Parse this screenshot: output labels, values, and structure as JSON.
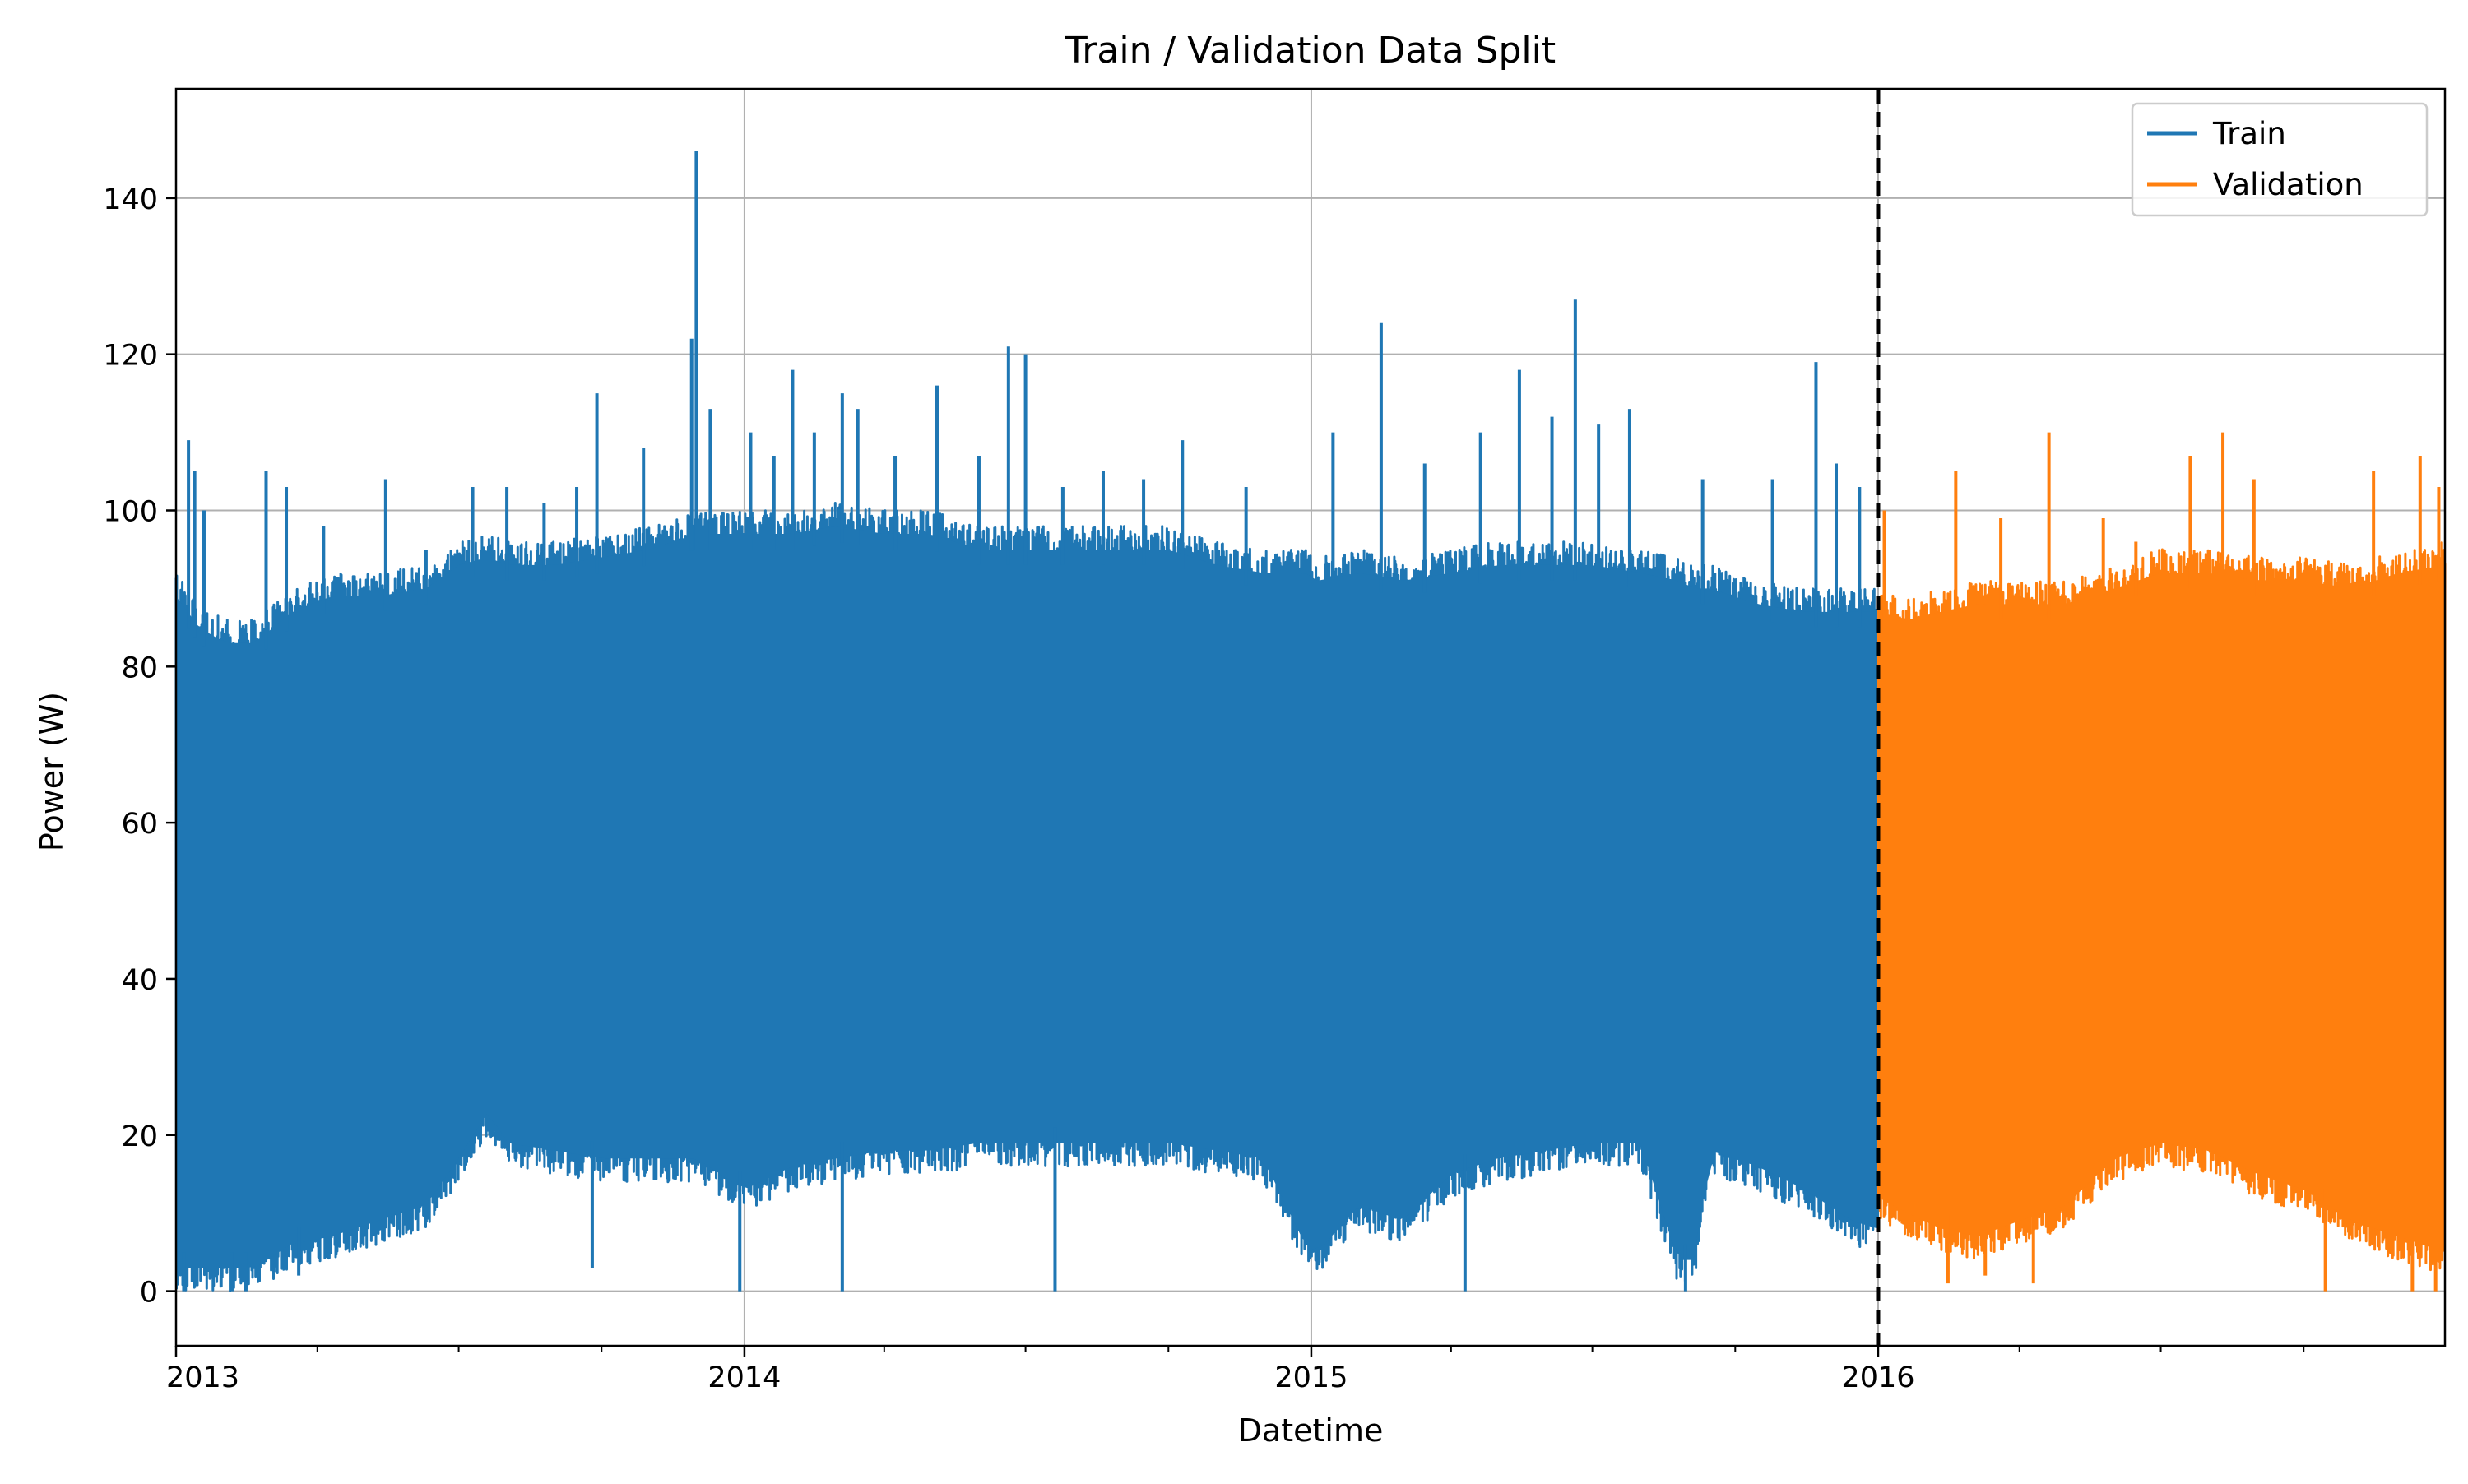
{
  "chart_data": {
    "type": "line",
    "title": "Train / Validation Data Split",
    "xlabel": "Datetime",
    "ylabel": "Power (W)",
    "grid": true,
    "legend_position": "top-right",
    "xlim": [
      "2012-12-31",
      "2016-12-31"
    ],
    "ylim": [
      -7,
      154
    ],
    "x_ticks": [
      {
        "label": "2013",
        "date": "2012-12-31"
      },
      {
        "label": "2014",
        "date": "2014-01-01"
      },
      {
        "label": "2015",
        "date": "2015-01-01"
      },
      {
        "label": "2016",
        "date": "2016-01-01"
      }
    ],
    "y_ticks": [
      {
        "label": "0",
        "value": 0
      },
      {
        "label": "20",
        "value": 20
      },
      {
        "label": "40",
        "value": 40
      },
      {
        "label": "60",
        "value": 60
      },
      {
        "label": "80",
        "value": 80
      },
      {
        "label": "100",
        "value": 100
      },
      {
        "label": "120",
        "value": 120
      },
      {
        "label": "140",
        "value": 140
      }
    ],
    "split_date": "2016-01-01",
    "series": [
      {
        "name": "Train",
        "color": "#1f77b4",
        "start": "2012-12-31",
        "end": "2016-01-01",
        "lower_envelope": [
          [
            "2012-12-31",
            0
          ],
          [
            "2013-01-15",
            0
          ],
          [
            "2013-02-01",
            0
          ],
          [
            "2013-02-20",
            0
          ],
          [
            "2013-03-15",
            3
          ],
          [
            "2013-04-10",
            4
          ],
          [
            "2013-05-10",
            6
          ],
          [
            "2013-06-10",
            8
          ],
          [
            "2013-07-01",
            14
          ],
          [
            "2013-07-20",
            20
          ],
          [
            "2013-08-01",
            16
          ],
          [
            "2013-09-01",
            15
          ],
          [
            "2013-10-01",
            14
          ],
          [
            "2013-11-01",
            14
          ],
          [
            "2013-12-01",
            14
          ],
          [
            "2014-01-01",
            10
          ],
          [
            "2014-02-01",
            13
          ],
          [
            "2014-03-01",
            14
          ],
          [
            "2014-04-01",
            15
          ],
          [
            "2014-05-01",
            15
          ],
          [
            "2014-06-01",
            16
          ],
          [
            "2014-07-01",
            16
          ],
          [
            "2014-08-01",
            16
          ],
          [
            "2014-09-01",
            16
          ],
          [
            "2014-10-01",
            16
          ],
          [
            "2014-11-01",
            15
          ],
          [
            "2014-12-01",
            14
          ],
          [
            "2014-12-28",
            3
          ],
          [
            "2015-01-05",
            2
          ],
          [
            "2015-02-01",
            8
          ],
          [
            "2015-03-01",
            6
          ],
          [
            "2015-04-01",
            12
          ],
          [
            "2015-05-01",
            14
          ],
          [
            "2015-06-01",
            15
          ],
          [
            "2015-07-01",
            16
          ],
          [
            "2015-08-01",
            16
          ],
          [
            "2015-08-25",
            1
          ],
          [
            "2015-09-05",
            1
          ],
          [
            "2015-09-15",
            15
          ],
          [
            "2015-10-15",
            13
          ],
          [
            "2015-11-15",
            10
          ],
          [
            "2015-12-15",
            6
          ],
          [
            "2016-01-01",
            5
          ]
        ],
        "upper_envelope": [
          [
            "2012-12-31",
            92
          ],
          [
            "2013-01-15",
            88
          ],
          [
            "2013-02-01",
            86
          ],
          [
            "2013-02-20",
            86
          ],
          [
            "2013-03-15",
            90
          ],
          [
            "2013-04-10",
            92
          ],
          [
            "2013-05-10",
            92
          ],
          [
            "2013-06-10",
            93
          ],
          [
            "2013-07-01",
            96
          ],
          [
            "2013-07-20",
            97
          ],
          [
            "2013-08-01",
            96
          ],
          [
            "2013-09-01",
            96
          ],
          [
            "2013-10-01",
            97
          ],
          [
            "2013-11-01",
            98
          ],
          [
            "2013-12-01",
            100
          ],
          [
            "2014-01-01",
            100
          ],
          [
            "2014-02-01",
            100
          ],
          [
            "2014-03-01",
            101
          ],
          [
            "2014-04-01",
            100
          ],
          [
            "2014-05-01",
            100
          ],
          [
            "2014-06-01",
            98
          ],
          [
            "2014-07-01",
            98
          ],
          [
            "2014-08-01",
            98
          ],
          [
            "2014-09-01",
            98
          ],
          [
            "2014-10-01",
            98
          ],
          [
            "2014-11-01",
            96
          ],
          [
            "2014-12-01",
            95
          ],
          [
            "2014-12-28",
            95
          ],
          [
            "2015-01-05",
            94
          ],
          [
            "2015-02-01",
            95
          ],
          [
            "2015-03-01",
            94
          ],
          [
            "2015-04-01",
            95
          ],
          [
            "2015-05-01",
            96
          ],
          [
            "2015-06-01",
            96
          ],
          [
            "2015-07-01",
            96
          ],
          [
            "2015-08-01",
            95
          ],
          [
            "2015-08-25",
            94
          ],
          [
            "2015-09-05",
            93
          ],
          [
            "2015-09-15",
            93
          ],
          [
            "2015-10-15",
            91
          ],
          [
            "2015-11-15",
            90
          ],
          [
            "2015-12-15",
            90
          ],
          [
            "2016-01-01",
            90
          ]
        ],
        "dips": [
          {
            "date": "2013-01-05",
            "value": 0
          },
          {
            "date": "2013-02-05",
            "value": 0
          },
          {
            "date": "2013-02-14",
            "value": 0
          },
          {
            "date": "2013-03-20",
            "value": 2
          },
          {
            "date": "2013-09-25",
            "value": 3
          },
          {
            "date": "2013-12-29",
            "value": 0
          },
          {
            "date": "2014-03-05",
            "value": 0
          },
          {
            "date": "2014-07-20",
            "value": 0
          },
          {
            "date": "2015-04-10",
            "value": 0
          },
          {
            "date": "2015-08-30",
            "value": 0
          }
        ],
        "spikes": [
          {
            "date": "2013-01-08",
            "value": 109
          },
          {
            "date": "2013-01-12",
            "value": 105
          },
          {
            "date": "2013-01-18",
            "value": 100
          },
          {
            "date": "2013-02-27",
            "value": 105
          },
          {
            "date": "2013-03-12",
            "value": 103
          },
          {
            "date": "2013-04-05",
            "value": 98
          },
          {
            "date": "2013-05-15",
            "value": 104
          },
          {
            "date": "2013-06-10",
            "value": 95
          },
          {
            "date": "2013-07-10",
            "value": 103
          },
          {
            "date": "2013-08-01",
            "value": 103
          },
          {
            "date": "2013-08-25",
            "value": 101
          },
          {
            "date": "2013-09-15",
            "value": 103
          },
          {
            "date": "2013-09-28",
            "value": 115
          },
          {
            "date": "2013-10-28",
            "value": 108
          },
          {
            "date": "2013-11-28",
            "value": 122
          },
          {
            "date": "2013-12-01",
            "value": 146
          },
          {
            "date": "2013-12-10",
            "value": 113
          },
          {
            "date": "2014-01-05",
            "value": 110
          },
          {
            "date": "2014-01-20",
            "value": 107
          },
          {
            "date": "2014-02-01",
            "value": 118
          },
          {
            "date": "2014-02-15",
            "value": 110
          },
          {
            "date": "2014-03-05",
            "value": 115
          },
          {
            "date": "2014-03-15",
            "value": 113
          },
          {
            "date": "2014-04-08",
            "value": 107
          },
          {
            "date": "2014-05-05",
            "value": 116
          },
          {
            "date": "2014-06-01",
            "value": 107
          },
          {
            "date": "2014-06-20",
            "value": 121
          },
          {
            "date": "2014-07-01",
            "value": 120
          },
          {
            "date": "2014-07-25",
            "value": 103
          },
          {
            "date": "2014-08-20",
            "value": 105
          },
          {
            "date": "2014-09-15",
            "value": 104
          },
          {
            "date": "2014-10-10",
            "value": 109
          },
          {
            "date": "2014-11-20",
            "value": 103
          },
          {
            "date": "2015-01-15",
            "value": 110
          },
          {
            "date": "2015-02-15",
            "value": 124
          },
          {
            "date": "2015-03-15",
            "value": 106
          },
          {
            "date": "2015-04-20",
            "value": 110
          },
          {
            "date": "2015-05-15",
            "value": 118
          },
          {
            "date": "2015-06-05",
            "value": 112
          },
          {
            "date": "2015-06-20",
            "value": 127
          },
          {
            "date": "2015-07-05",
            "value": 111
          },
          {
            "date": "2015-07-25",
            "value": 113
          },
          {
            "date": "2015-09-10",
            "value": 104
          },
          {
            "date": "2015-10-25",
            "value": 104
          },
          {
            "date": "2015-11-22",
            "value": 119
          },
          {
            "date": "2015-12-05",
            "value": 106
          },
          {
            "date": "2015-12-20",
            "value": 103
          }
        ]
      },
      {
        "name": "Validation",
        "color": "#ff7f0e",
        "start": "2016-01-01",
        "end": "2016-12-31",
        "lower_envelope": [
          [
            "2016-01-01",
            9
          ],
          [
            "2016-01-20",
            7
          ],
          [
            "2016-02-10",
            5
          ],
          [
            "2016-03-05",
            4
          ],
          [
            "2016-04-01",
            6
          ],
          [
            "2016-05-01",
            8
          ],
          [
            "2016-06-01",
            14
          ],
          [
            "2016-07-01",
            16
          ],
          [
            "2016-08-01",
            15
          ],
          [
            "2016-09-01",
            12
          ],
          [
            "2016-10-01",
            10
          ],
          [
            "2016-11-01",
            6
          ],
          [
            "2016-12-01",
            4
          ],
          [
            "2016-12-31",
            2
          ]
        ],
        "upper_envelope": [
          [
            "2016-01-01",
            90
          ],
          [
            "2016-01-20",
            89
          ],
          [
            "2016-02-10",
            90
          ],
          [
            "2016-03-05",
            91
          ],
          [
            "2016-04-01",
            91
          ],
          [
            "2016-05-01",
            91
          ],
          [
            "2016-06-01",
            93
          ],
          [
            "2016-07-01",
            95
          ],
          [
            "2016-08-01",
            95
          ],
          [
            "2016-09-01",
            94
          ],
          [
            "2016-10-01",
            94
          ],
          [
            "2016-11-01",
            93
          ],
          [
            "2016-12-01",
            95
          ],
          [
            "2016-12-31",
            96
          ]
        ],
        "dips": [
          {
            "date": "2016-02-15",
            "value": 1
          },
          {
            "date": "2016-03-10",
            "value": 2
          },
          {
            "date": "2016-04-10",
            "value": 1
          },
          {
            "date": "2016-10-15",
            "value": 0
          },
          {
            "date": "2016-12-10",
            "value": 0
          },
          {
            "date": "2016-12-25",
            "value": 0
          }
        ],
        "spikes": [
          {
            "date": "2016-01-05",
            "value": 100
          },
          {
            "date": "2016-02-20",
            "value": 105
          },
          {
            "date": "2016-03-20",
            "value": 99
          },
          {
            "date": "2016-04-20",
            "value": 110
          },
          {
            "date": "2016-05-25",
            "value": 99
          },
          {
            "date": "2016-06-15",
            "value": 96
          },
          {
            "date": "2016-07-20",
            "value": 107
          },
          {
            "date": "2016-08-10",
            "value": 110
          },
          {
            "date": "2016-08-30",
            "value": 104
          },
          {
            "date": "2016-11-15",
            "value": 105
          },
          {
            "date": "2016-12-15",
            "value": 107
          },
          {
            "date": "2016-12-27",
            "value": 103
          }
        ]
      }
    ]
  }
}
